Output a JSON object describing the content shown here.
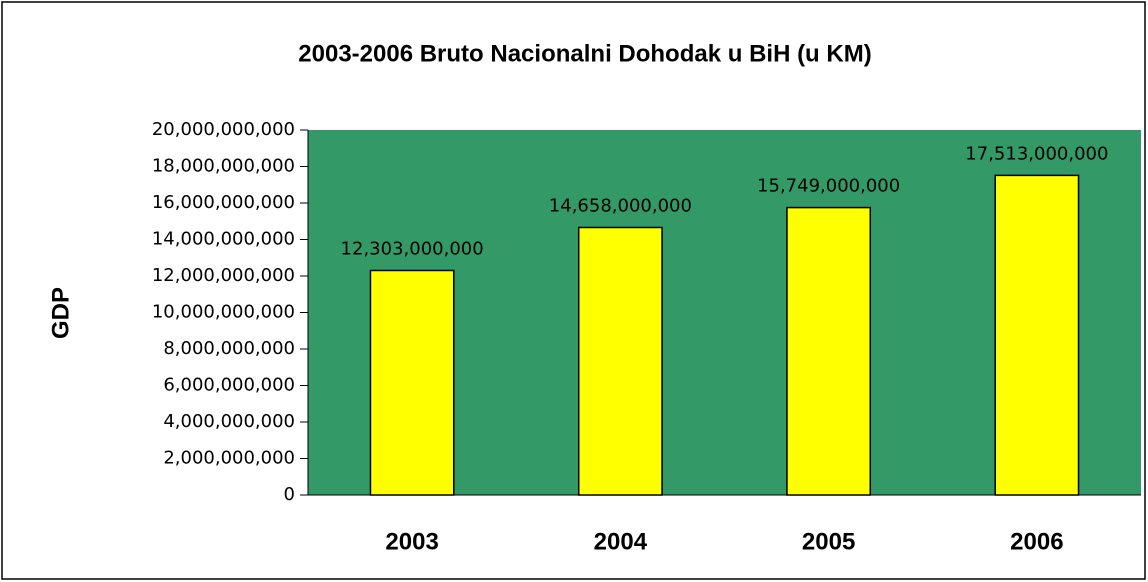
{
  "chart_data": {
    "type": "bar",
    "title": "2003-2006 Bruto Nacionalni Dohodak u BiH (u KM)",
    "y_label": "GDP",
    "categories": [
      "2003",
      "2004",
      "2005",
      "2006"
    ],
    "values": [
      12303000000,
      14658000000,
      15749000000,
      17513000000
    ],
    "value_labels": [
      "12,303,000,000",
      "14,658,000,000",
      "15,749,000,000",
      "17,513,000,000"
    ],
    "color": "#ffff00",
    "background": "#339966",
    "ylim": [
      0,
      20000000000
    ],
    "yticks": [
      0,
      {
        "value": 2000000000,
        "label": "2,000,000,000"
      },
      {
        "value": 4000000000,
        "label": "4,000,000,000"
      },
      {
        "value": 6000000000,
        "label": "6,000,000,000"
      },
      {
        "value": 8000000000,
        "label": "8,000,000,000"
      },
      {
        "value": 10000000000,
        "label": "10,000,000,000"
      },
      {
        "value": 12000000000,
        "label": "12,000,000,000"
      },
      {
        "value": 14000000000,
        "label": "14,000,000,000"
      },
      {
        "value": 16000000000,
        "label": "16,000,000,000"
      },
      {
        "value": 18000000000,
        "label": "18,000,000,000"
      },
      {
        "value": 20000000000,
        "label": "20,000,000,000"
      }
    ],
    "grid": false
  }
}
